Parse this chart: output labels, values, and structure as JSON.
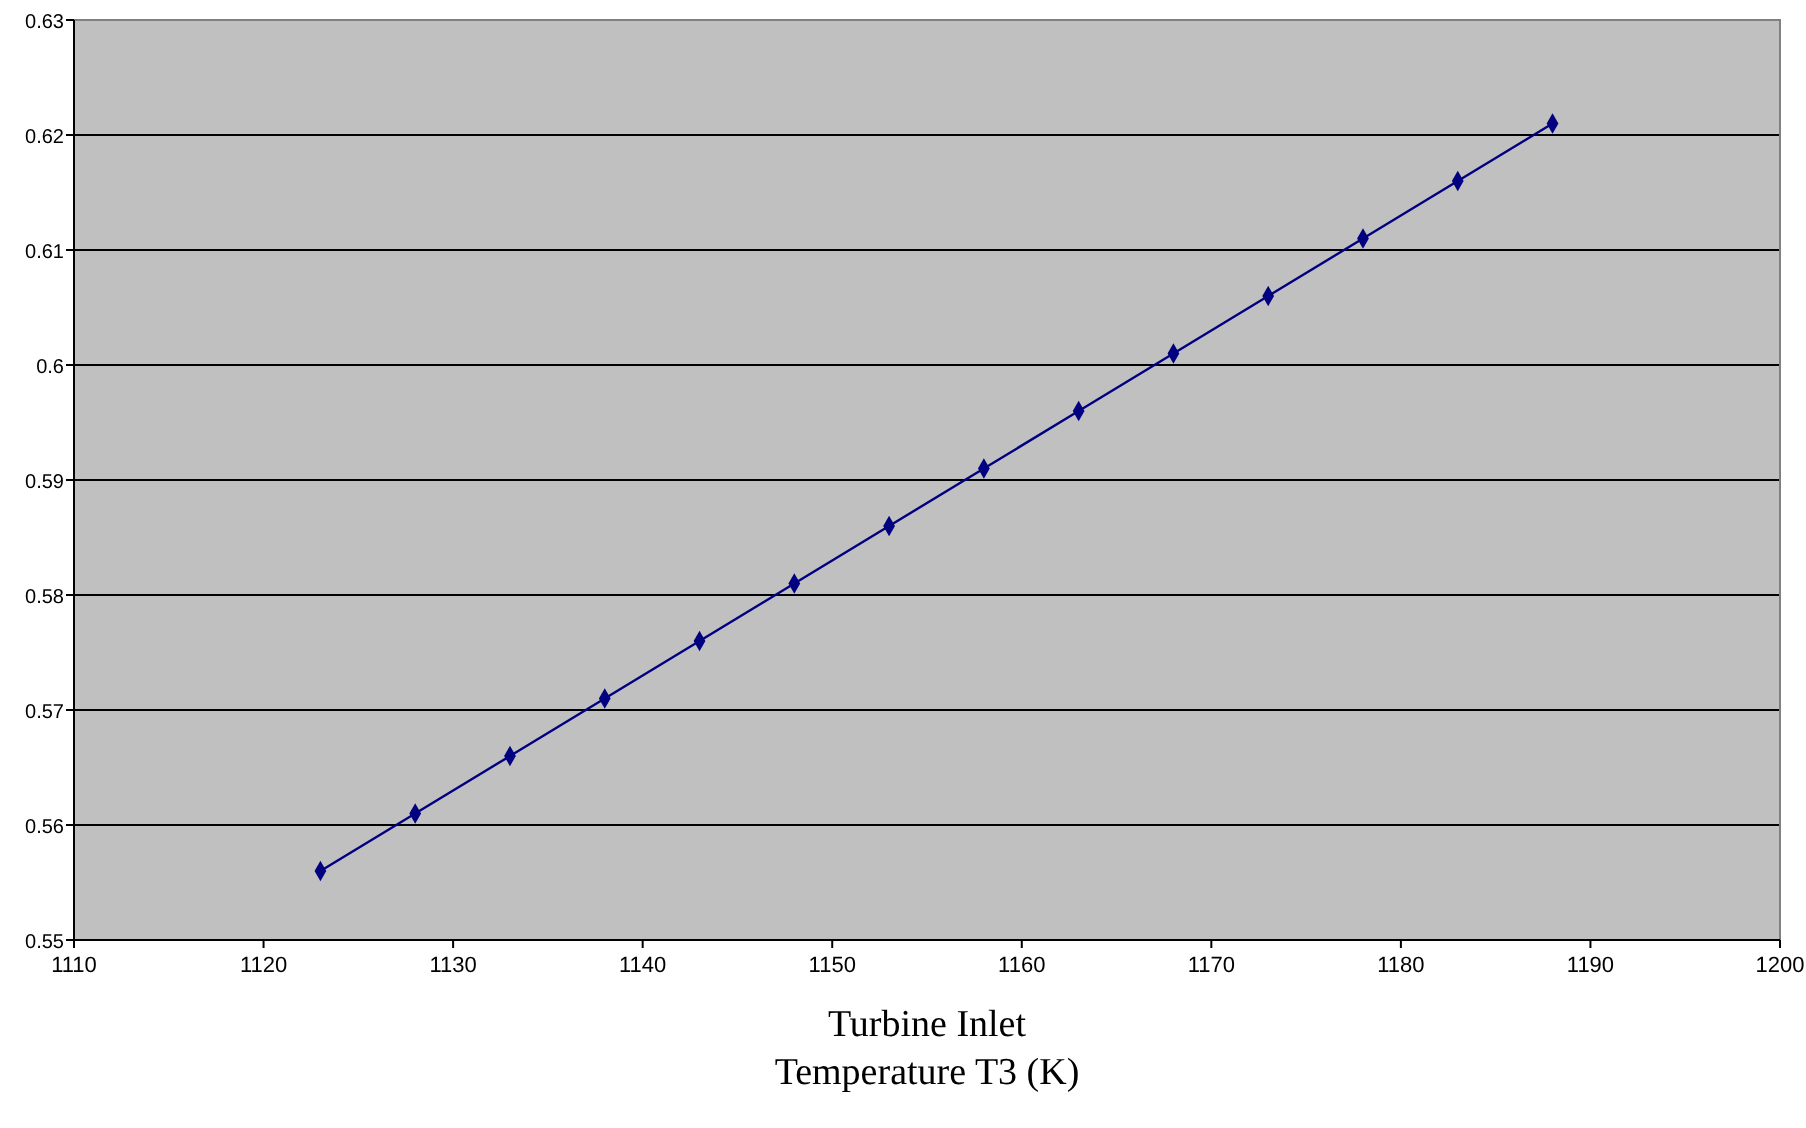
{
  "chart_data": {
    "type": "line",
    "xlabel": "Turbine Inlet\nTemperature T3 (K)",
    "x": [
      1123,
      1128,
      1133,
      1138,
      1143,
      1148,
      1153,
      1158,
      1163,
      1168,
      1173,
      1178,
      1183,
      1188
    ],
    "series": [
      {
        "color": "#000080",
        "values": [
          0.556,
          0.561,
          0.566,
          0.571,
          0.576,
          0.581,
          0.586,
          0.591,
          0.596,
          0.601,
          0.606,
          0.611,
          0.616,
          0.621
        ]
      }
    ],
    "xlim": [
      1110,
      1200
    ],
    "xticks": [
      1110,
      1120,
      1130,
      1140,
      1150,
      1160,
      1170,
      1180,
      1190,
      1200
    ],
    "ylim": [
      0.55,
      0.63
    ],
    "yticks": [
      0.55,
      0.56,
      0.57,
      0.58,
      0.59,
      0.6,
      0.61,
      0.62,
      0.63
    ],
    "grid": "y",
    "marker": "diamond",
    "line_style": "solid"
  }
}
